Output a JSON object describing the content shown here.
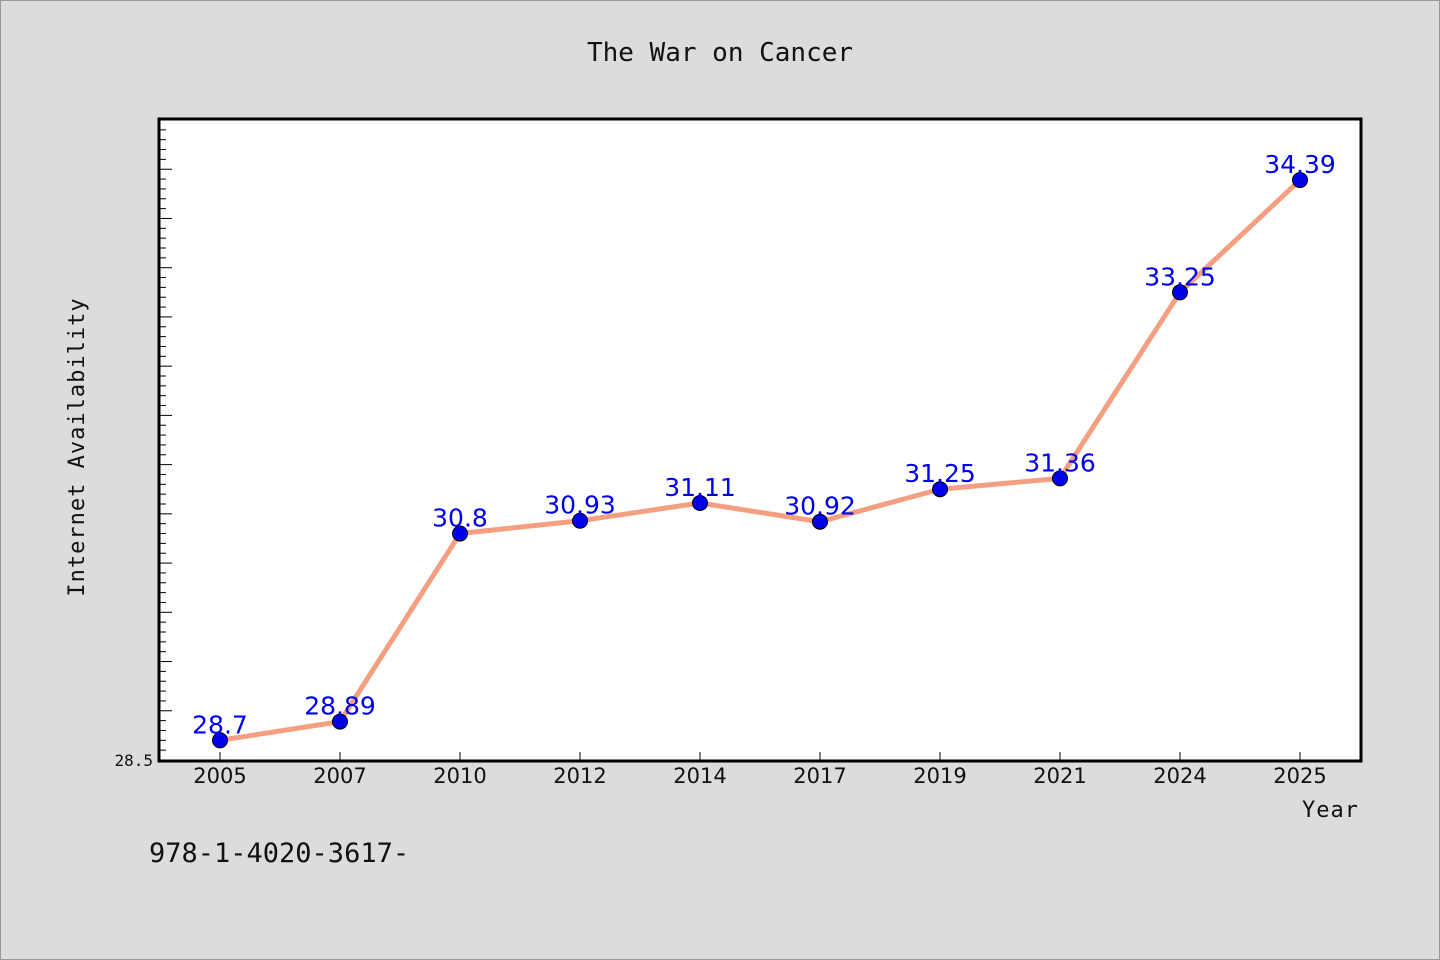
{
  "chart_data": {
    "type": "line",
    "title": "The War on Cancer",
    "xlabel": "Year",
    "ylabel": "Internet Availability",
    "categories": [
      "2005",
      "2007",
      "2010",
      "2012",
      "2014",
      "2017",
      "2019",
      "2021",
      "2024",
      "2025"
    ],
    "series": [
      {
        "values": [
          28.7,
          28.89,
          30.8,
          30.93,
          31.11,
          30.92,
          31.25,
          31.36,
          33.25,
          34.39
        ],
        "data_labels": [
          "28.7",
          "28.89",
          "30.8",
          "30.93",
          "31.11",
          "30.92",
          "31.25",
          "31.36",
          "33.25",
          "34.39"
        ]
      }
    ],
    "ylim": [
      28.5,
      35.0
    ],
    "y_tick_labels": [
      "28.5"
    ],
    "grid": false,
    "line_color": "#f4a080",
    "marker_color": "#0000ee",
    "label_color": "#0000ee",
    "background": "#dcdcdc",
    "plot_background": "#ffffff"
  },
  "footnote": "978-1-4020-3617-"
}
